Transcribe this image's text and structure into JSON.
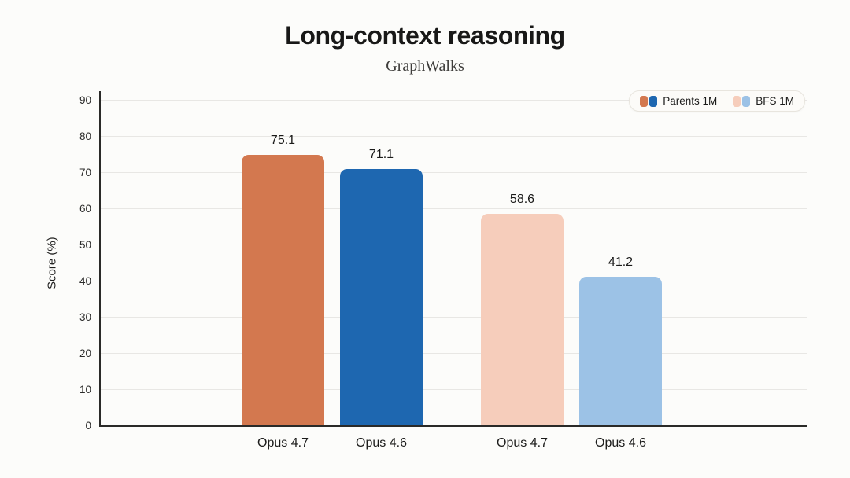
{
  "chart_data": {
    "type": "bar",
    "title": "Long-context reasoning",
    "subtitle": "GraphWalks",
    "xlabel": "",
    "ylabel": "Score (%)",
    "ylim": [
      0,
      90
    ],
    "yticks": [
      0,
      10,
      20,
      30,
      40,
      50,
      60,
      70,
      80,
      90
    ],
    "grid": true,
    "legend_position": "top-right-inside",
    "background_color": "#FCFCFA",
    "categories": [
      "Opus 4.7",
      "Opus 4.6",
      "Opus 4.7",
      "Opus 4.6"
    ],
    "bars": [
      {
        "category": "Opus 4.7",
        "series": "Parents 1M",
        "value": 75.1,
        "color": "#D3784F"
      },
      {
        "category": "Opus 4.6",
        "series": "Parents 1M",
        "value": 71.1,
        "color": "#1E67B0"
      },
      {
        "category": "Opus 4.7",
        "series": "BFS 1M",
        "value": 58.6,
        "color": "#F6CDBB"
      },
      {
        "category": "Opus 4.6",
        "series": "BFS 1M",
        "value": 41.2,
        "color": "#9CC2E6"
      }
    ],
    "legend": [
      {
        "label": "Parents 1M",
        "swatch_colors": [
          "#D3784F",
          "#1E67B0"
        ]
      },
      {
        "label": "BFS 1M",
        "swatch_colors": [
          "#F6CDBB",
          "#9CC2E6"
        ]
      }
    ]
  }
}
